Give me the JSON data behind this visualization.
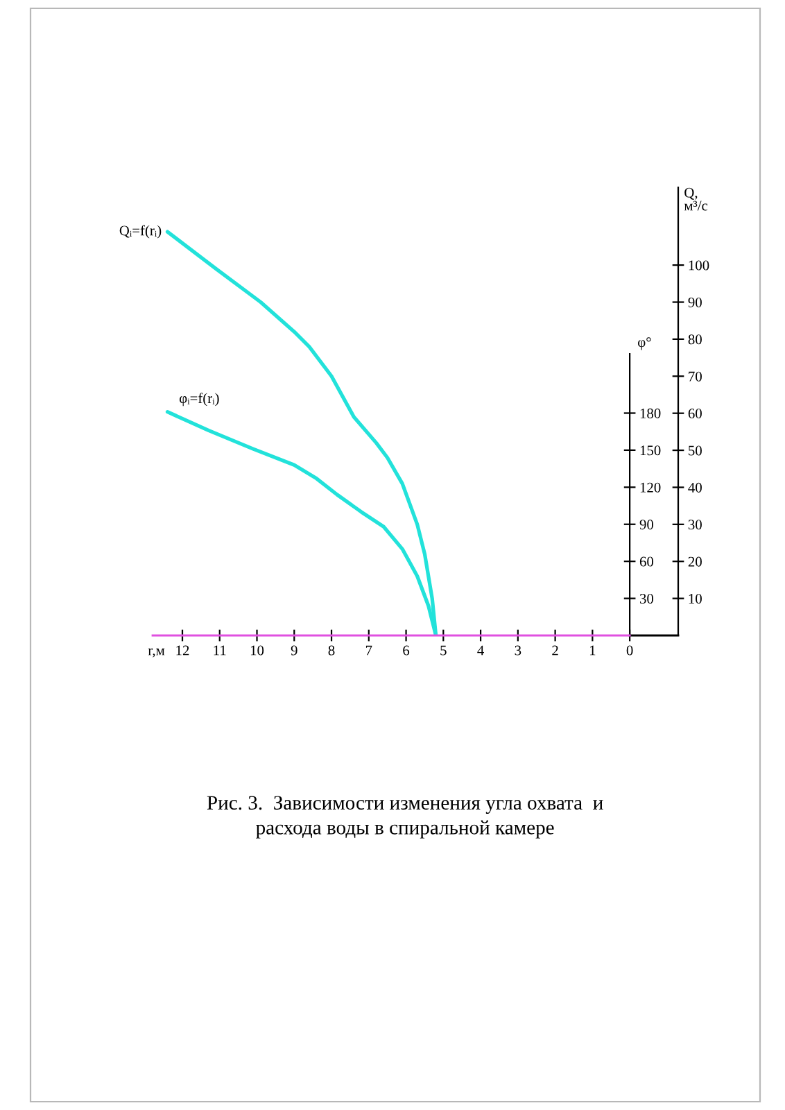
{
  "chart_data": {
    "type": "line",
    "xlabel": "r,м",
    "ylabel": "φ°",
    "y2label": "Q,\nм³/с",
    "xlim": [
      12.8,
      -1.3
    ],
    "xticks": [
      12,
      11,
      10,
      9,
      8,
      7,
      6,
      5,
      4,
      3,
      2,
      1,
      0
    ],
    "ylim": [
      0,
      228
    ],
    "yticks": [
      30,
      60,
      90,
      120,
      150,
      180
    ],
    "y2lim": [
      0,
      121
    ],
    "y2ticks": [
      10,
      20,
      30,
      40,
      50,
      60,
      70,
      80,
      90,
      100
    ],
    "series": [
      {
        "name": "Qᵢ=f(rᵢ)",
        "color": "#22e2da",
        "axis": "y2",
        "x": [
          12.4,
          11.1,
          9.9,
          9.0,
          8.6,
          8.0,
          7.4,
          6.8,
          6.5,
          6.1,
          5.7,
          5.5,
          5.3,
          5.2
        ],
        "values": [
          109,
          99,
          90,
          82,
          78,
          70,
          59,
          52,
          48,
          41,
          30,
          22,
          10,
          0
        ]
      },
      {
        "name": "φᵢ=f(rᵢ)",
        "color": "#22e2da",
        "axis": "y",
        "x": [
          12.4,
          11.3,
          10.1,
          9.0,
          8.4,
          7.85,
          7.2,
          6.6,
          6.1,
          5.7,
          5.4,
          5.2
        ],
        "values": [
          181,
          166,
          151,
          138,
          127,
          114,
          100,
          88,
          70,
          48,
          24,
          0
        ]
      }
    ],
    "annotations": [
      "Рис. 3.  Зависимости изменения угла охвата  и\nрасхода воды в спиральной камере"
    ]
  }
}
